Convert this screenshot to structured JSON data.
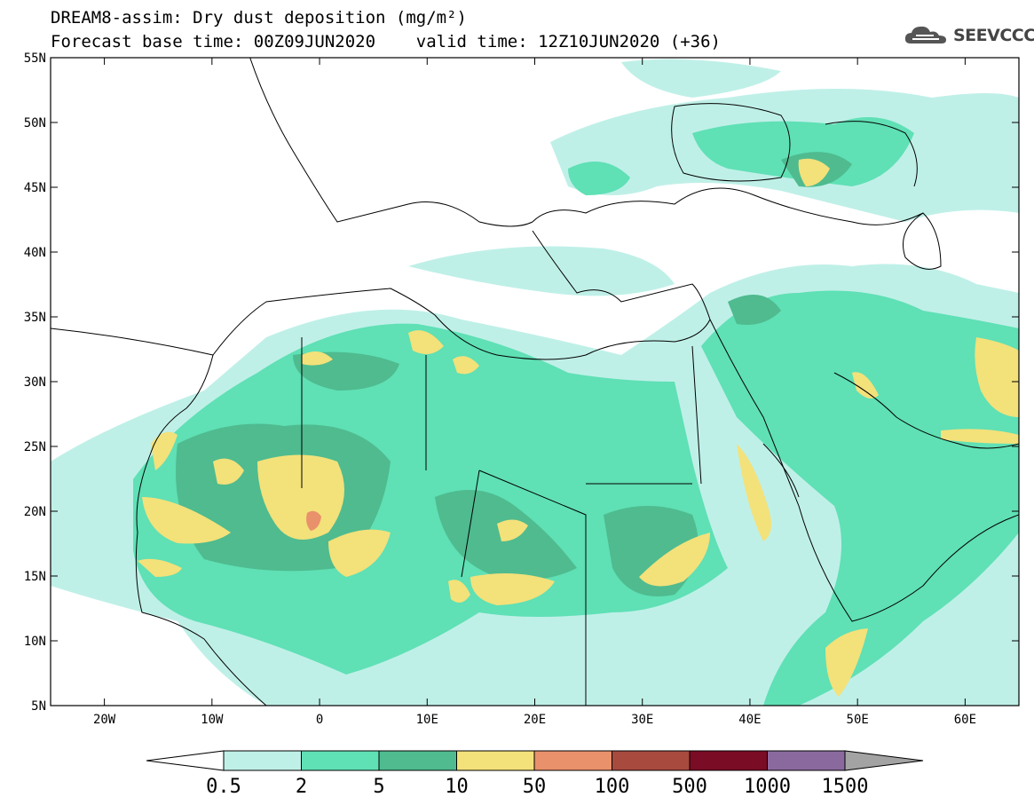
{
  "title": {
    "line1": "DREAM8-assim: Dry dust deposition (mg/m²)",
    "line2": "Forecast base time: 00Z09JUN2020    valid time: 12Z10JUN2020 (+36)"
  },
  "logo": {
    "text": "SEEVCCC",
    "icon": "cloud-logo-icon"
  },
  "map": {
    "lon_range": [
      -25,
      65
    ],
    "lat_range": [
      5,
      55
    ],
    "lat_ticks": [
      "55N",
      "50N",
      "45N",
      "40N",
      "35N",
      "30N",
      "25N",
      "20N",
      "15N",
      "10N",
      "5N"
    ],
    "lon_ticks": [
      "20W",
      "10W",
      "0",
      "10E",
      "20E",
      "30E",
      "40E",
      "50E",
      "60E"
    ]
  },
  "colorbar": {
    "labels": [
      "0.5",
      "2",
      "5",
      "10",
      "50",
      "100",
      "500",
      "1000",
      "1500"
    ],
    "colors": [
      "#bff0e8",
      "#5fe0b5",
      "#4fbb8f",
      "#f3e17a",
      "#e9916b",
      "#a84a3e",
      "#7b0c25",
      "#8a6a9e",
      "#a3a3a3"
    ]
  }
}
